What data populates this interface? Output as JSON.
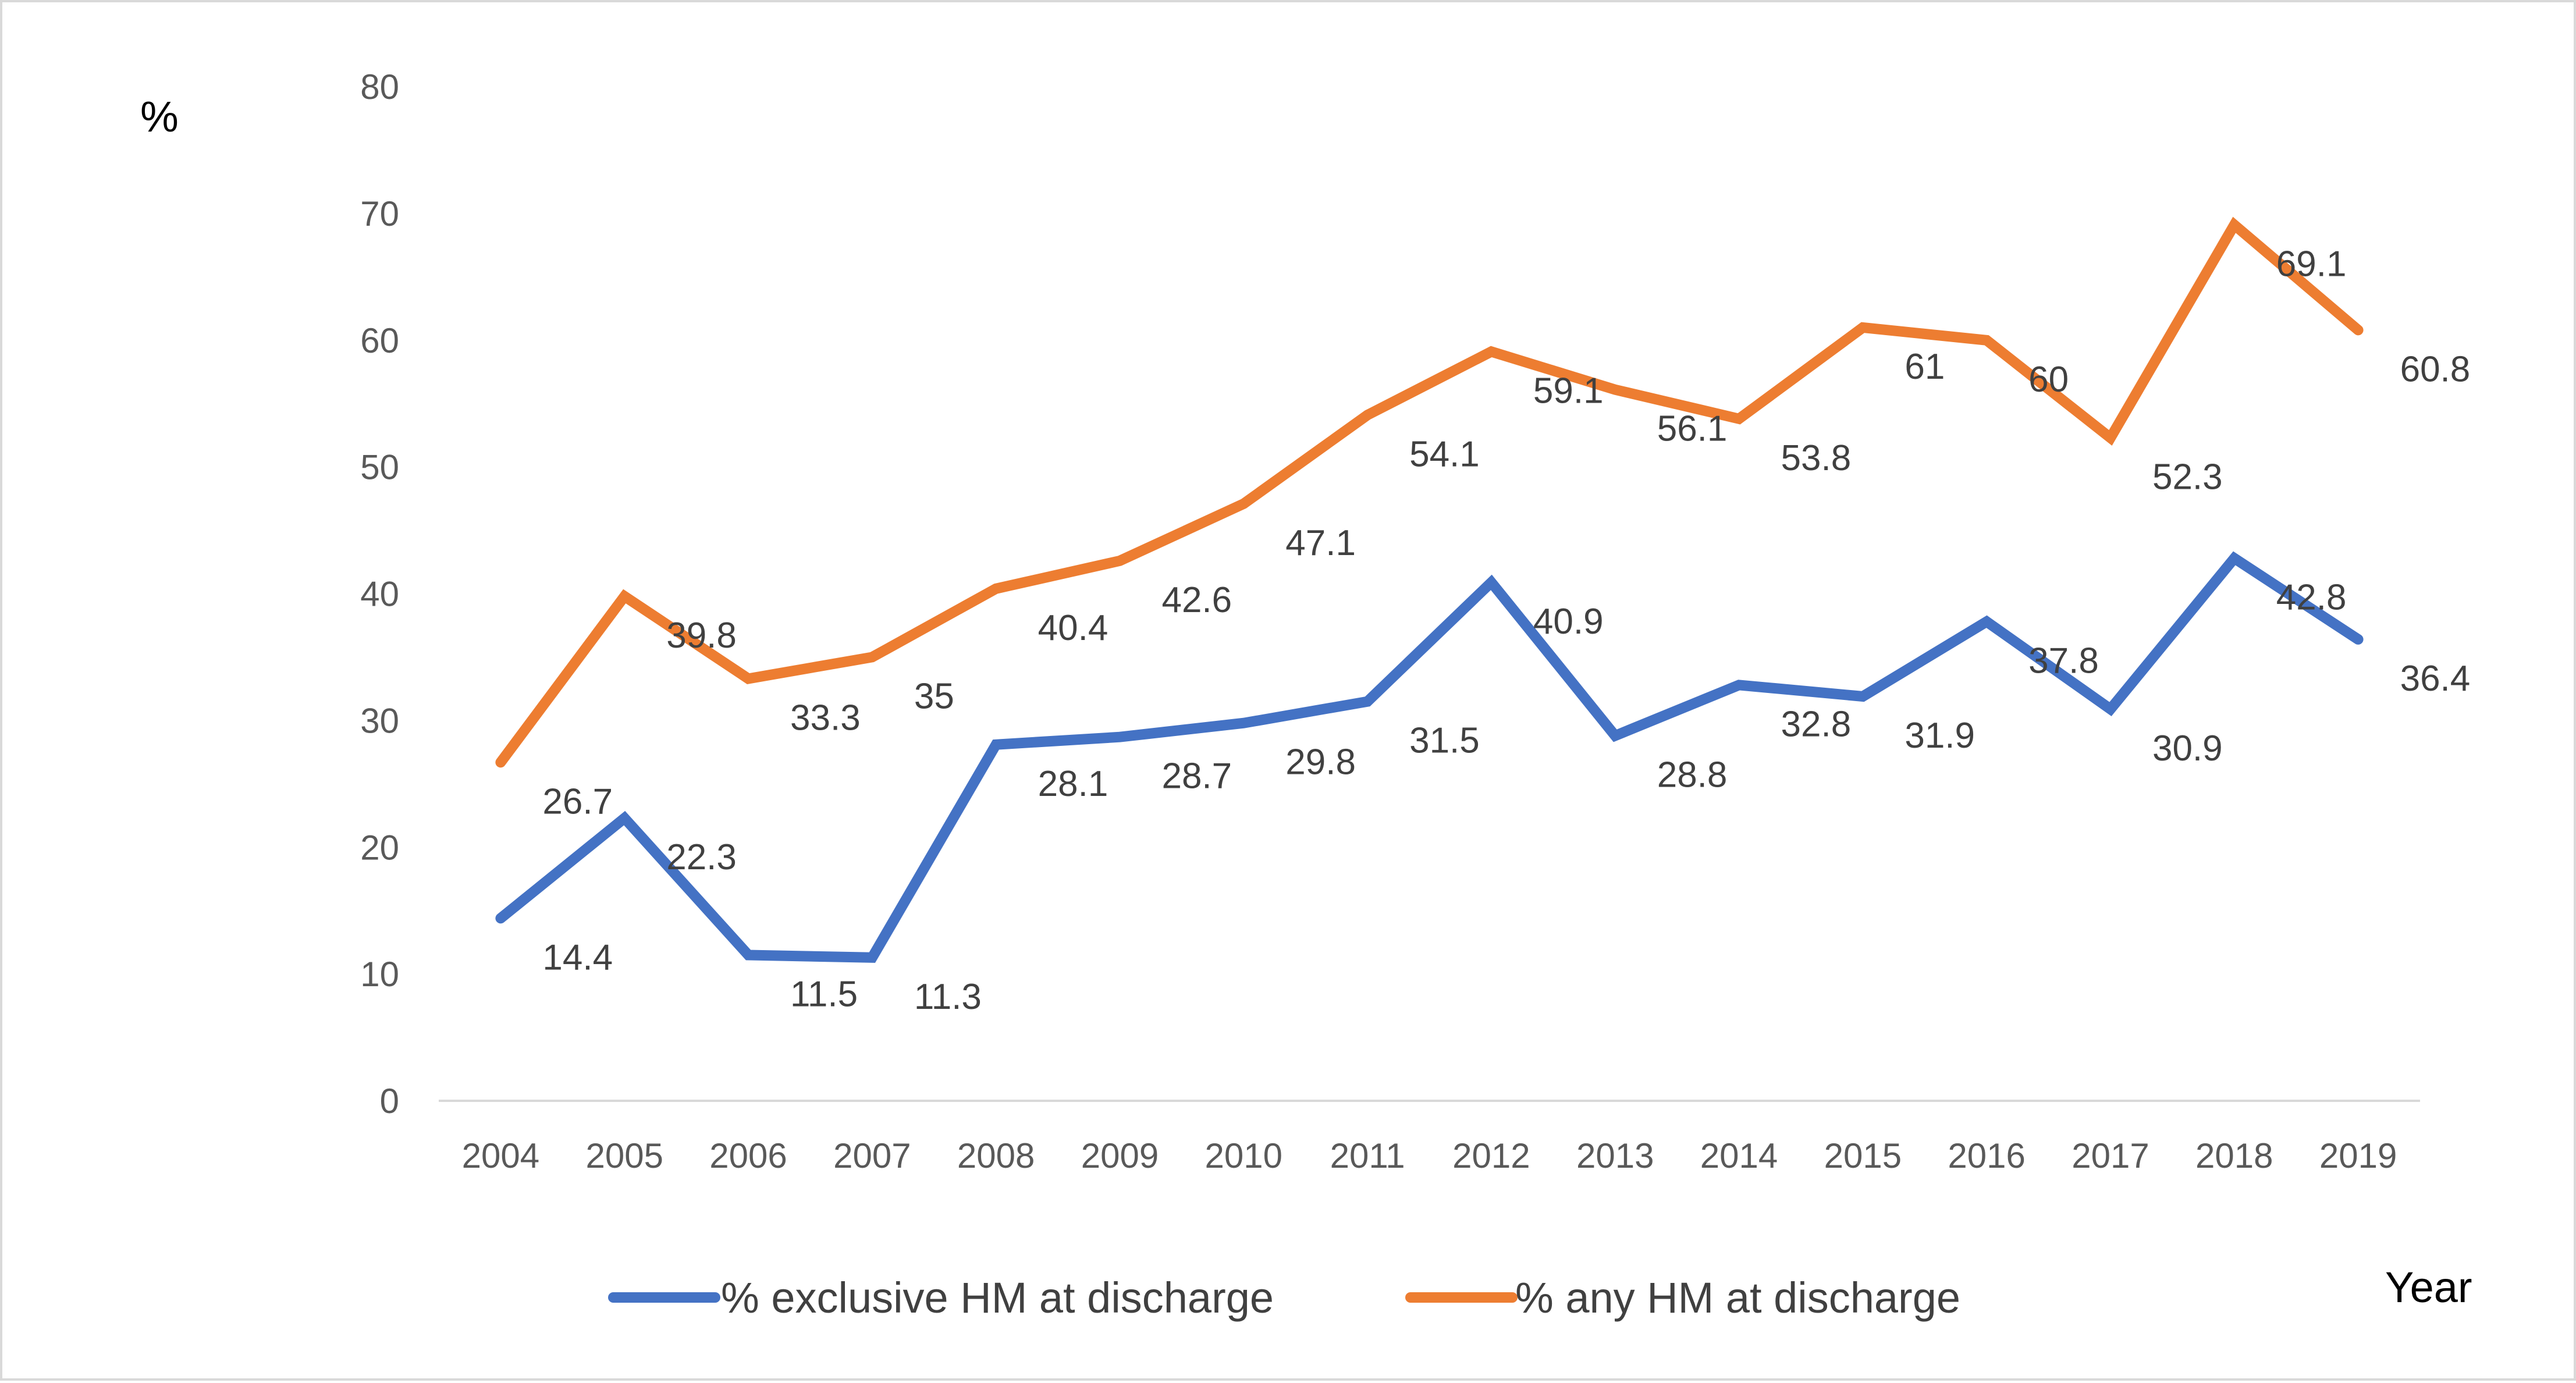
{
  "chart_data": {
    "type": "line",
    "title": "",
    "xlabel": "Year",
    "ylabel": "%",
    "ylim": [
      0,
      80
    ],
    "yticks": [
      "0",
      "10",
      "20",
      "30",
      "40",
      "50",
      "60",
      "70",
      "80"
    ],
    "categories": [
      "2004",
      "2005",
      "2006",
      "2007",
      "2008",
      "2009",
      "2010",
      "2011",
      "2012",
      "2013",
      "2014",
      "2015",
      "2016",
      "2017",
      "2018",
      "2019"
    ],
    "series": [
      {
        "name": "% exclusive HM at discharge",
        "color": "#4472C4",
        "values": [
          14.4,
          22.3,
          11.5,
          11.3,
          28.1,
          28.7,
          29.8,
          31.5,
          40.9,
          28.8,
          32.8,
          31.9,
          37.8,
          30.9,
          42.8,
          36.4
        ],
        "labels": [
          "14.4",
          "22.3",
          "11.5",
          "11.3",
          "28.1",
          "28.7",
          "29.8",
          "31.5",
          "40.9",
          "28.8",
          "32.8",
          "31.9",
          "37.8",
          "30.9",
          "42.8",
          "36.4"
        ]
      },
      {
        "name": "% any HM at discharge",
        "color": "#ED7D31",
        "values": [
          26.7,
          39.8,
          33.3,
          35,
          40.4,
          42.6,
          47.1,
          54.1,
          59.1,
          56.1,
          53.8,
          61,
          60,
          52.3,
          69.1,
          60.8
        ],
        "labels": [
          "26.7",
          "39.8",
          "33.3",
          "35",
          "40.4",
          "42.6",
          "47.1",
          "54.1",
          "59.1",
          "56.1",
          "53.8",
          "61",
          "60",
          "52.3",
          "69.1",
          "60.8"
        ]
      }
    ],
    "grid": false,
    "legend": "bottom"
  }
}
